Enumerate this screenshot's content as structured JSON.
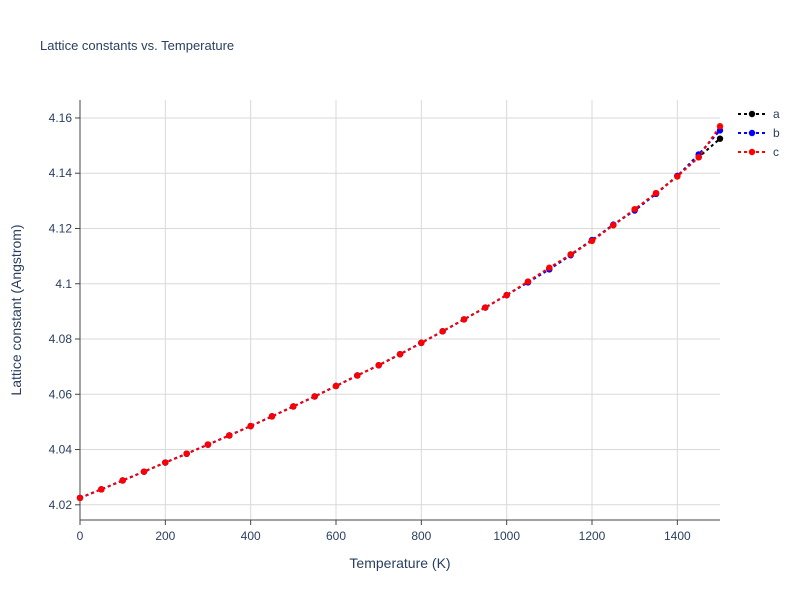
{
  "chart_data": {
    "type": "line",
    "title": "Lattice constants vs. Temperature",
    "xlabel": "Temperature (K)",
    "ylabel": "Lattice constant (Angstrom)",
    "xlim": [
      0,
      1500
    ],
    "ylim": [
      4.0145,
      4.1665
    ],
    "xticks": [
      0,
      200,
      400,
      600,
      800,
      1000,
      1200,
      1400
    ],
    "xtick_labels": [
      "0",
      "200",
      "400",
      "600",
      "800",
      "1000",
      "1200",
      "1400"
    ],
    "yticks": [
      4.02,
      4.04,
      4.06,
      4.08,
      4.1,
      4.12,
      4.14,
      4.16
    ],
    "ytick_labels": [
      "4.02",
      "4.04",
      "4.06",
      "4.08",
      "4.1",
      "4.12",
      "4.14",
      "4.16"
    ],
    "grid": true,
    "legend_position": "top-right",
    "x": [
      0,
      50,
      100,
      150,
      200,
      250,
      300,
      350,
      400,
      450,
      500,
      550,
      600,
      650,
      700,
      750,
      800,
      850,
      900,
      950,
      1000,
      1050,
      1100,
      1150,
      1200,
      1250,
      1300,
      1350,
      1400,
      1450,
      1500
    ],
    "series": [
      {
        "name": "a",
        "color": "#000000",
        "values": [
          4.0225,
          4.0256,
          4.0288,
          4.032,
          4.0353,
          4.0385,
          4.0418,
          4.0451,
          4.0485,
          4.052,
          4.0556,
          4.0592,
          4.063,
          4.0668,
          4.0705,
          4.0745,
          4.0786,
          4.0828,
          4.0871,
          4.0914,
          4.0959,
          4.1007,
          4.1055,
          4.1106,
          4.1158,
          4.1212,
          4.1268,
          4.1327,
          4.139,
          4.1458,
          4.1525
        ]
      },
      {
        "name": "b",
        "color": "#0000ff",
        "values": [
          4.0225,
          4.0256,
          4.0288,
          4.032,
          4.0353,
          4.0385,
          4.0418,
          4.0451,
          4.0485,
          4.052,
          4.0556,
          4.0592,
          4.063,
          4.0668,
          4.0705,
          4.0745,
          4.0786,
          4.0828,
          4.0871,
          4.0914,
          4.0959,
          4.1005,
          4.1052,
          4.1103,
          4.1158,
          4.1214,
          4.1265,
          4.1325,
          4.139,
          4.1468,
          4.1555
        ]
      },
      {
        "name": "c",
        "color": "#ff0000",
        "values": [
          4.0225,
          4.0256,
          4.0288,
          4.032,
          4.0353,
          4.0385,
          4.0418,
          4.0451,
          4.0485,
          4.052,
          4.0556,
          4.0592,
          4.063,
          4.0668,
          4.0705,
          4.0745,
          4.0786,
          4.0828,
          4.0871,
          4.0914,
          4.0959,
          4.1008,
          4.1058,
          4.1106,
          4.1155,
          4.1212,
          4.127,
          4.1328,
          4.1388,
          4.1458,
          4.157
        ]
      }
    ]
  }
}
